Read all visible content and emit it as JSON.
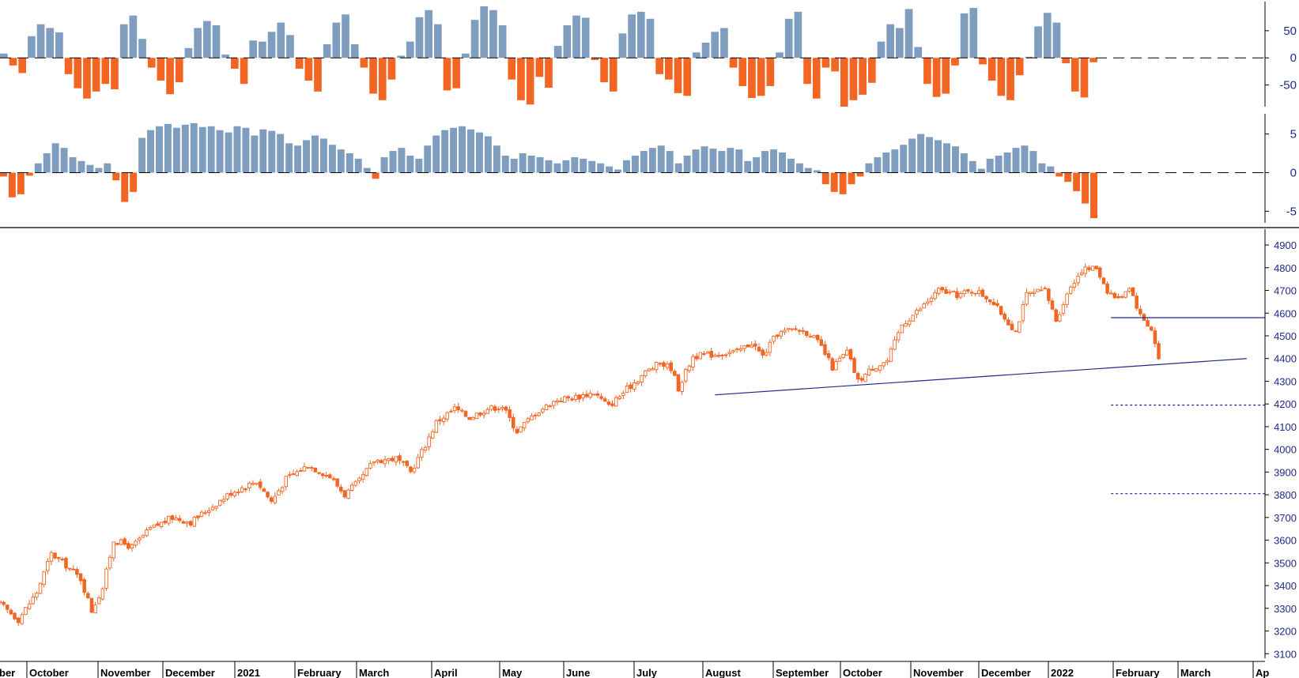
{
  "colors": {
    "up_bar": "#7f9dbf",
    "down_bar": "#f26522",
    "candle": "#f26522",
    "trend_line": "#1f2a8a",
    "support_dotted": "#1f2a8a",
    "axis_text": "#1f2a8a",
    "axis_line": "#000000",
    "month_text": "#000000"
  },
  "chart_data": [
    {
      "type": "bar",
      "panel": "oscillator-top",
      "yticks": [
        50,
        0,
        -50
      ],
      "ylim": [
        -90,
        95
      ],
      "zero_line": "dashed",
      "x_index_range": [
        0,
        345
      ],
      "series": [
        {
          "values": [
            8,
            -14,
            -28,
            40,
            62,
            55,
            47,
            -30,
            -56,
            -75,
            -62,
            -48,
            -58,
            62,
            78,
            35,
            -18,
            -42,
            -67,
            -45,
            18,
            55,
            68,
            60,
            6,
            -20,
            -48,
            32,
            30,
            48,
            65,
            42,
            -20,
            -42,
            -62,
            25,
            65,
            80,
            25,
            -18,
            -66,
            -78,
            -40,
            4,
            30,
            75,
            88,
            62,
            -60,
            -56,
            8,
            70,
            95,
            88,
            60,
            -40,
            -78,
            -86,
            -35,
            -55,
            22,
            60,
            78,
            74,
            -4,
            -45,
            -62,
            45,
            80,
            85,
            72,
            -30,
            -40,
            -65,
            -70,
            10,
            28,
            48,
            55,
            -18,
            -52,
            -74,
            -70,
            -52,
            10,
            72,
            85,
            -48,
            -75,
            -18,
            -25,
            -90,
            -78,
            -68,
            -46,
            30,
            62,
            55,
            90,
            20,
            -48,
            -72,
            -66,
            -14,
            82,
            92,
            -12,
            -42,
            -70,
            -78,
            -32,
            2,
            58,
            83,
            65,
            -10,
            -62,
            -73,
            -8
          ]
        }
      ]
    },
    {
      "type": "bar",
      "panel": "oscillator-bottom",
      "yticks": [
        5,
        0,
        -5
      ],
      "ylim": [
        -6.5,
        7
      ],
      "zero_line": "dashed",
      "x_index_range": [
        0,
        345
      ],
      "series": [
        {
          "values": [
            -0.5,
            -3.2,
            -2.8,
            -0.4,
            1.2,
            2.5,
            3.8,
            3.2,
            2.0,
            1.5,
            1.0,
            0.6,
            1.2,
            -1.0,
            -3.8,
            -2.5,
            4.5,
            5.5,
            6.0,
            6.3,
            5.8,
            6.2,
            6.4,
            5.9,
            6.0,
            5.5,
            5.2,
            6.0,
            5.8,
            4.8,
            5.6,
            5.4,
            5.0,
            3.8,
            3.5,
            4.2,
            4.8,
            4.4,
            3.6,
            3.0,
            2.5,
            1.8,
            0.6,
            -0.8,
            2.0,
            2.8,
            3.2,
            2.2,
            1.8,
            3.5,
            4.8,
            5.5,
            5.8,
            6.0,
            5.6,
            5.2,
            4.7,
            3.5,
            2.2,
            1.8,
            2.5,
            2.2,
            2.0,
            1.6,
            1.2,
            1.6,
            2.0,
            1.8,
            1.5,
            1.2,
            0.8,
            0.4,
            1.6,
            2.2,
            2.8,
            3.2,
            3.5,
            2.8,
            1.2,
            2.2,
            3.0,
            3.4,
            3.1,
            2.8,
            3.2,
            3.0,
            1.5,
            2.0,
            2.8,
            3.0,
            2.6,
            1.8,
            1.2,
            0.6,
            0.3,
            -1.5,
            -2.5,
            -2.8,
            -1.5,
            -0.5,
            1.2,
            2.0,
            2.6,
            3.0,
            3.6,
            4.4,
            5.0,
            4.6,
            4.2,
            3.8,
            3.4,
            2.5,
            1.5,
            0.5,
            1.8,
            2.2,
            2.6,
            3.2,
            3.5,
            2.8,
            1.2,
            0.8,
            -0.5,
            -1.2,
            -2.4,
            -4.0,
            -5.9
          ]
        }
      ]
    },
    {
      "type": "candlestick",
      "panel": "price",
      "yticks": [
        4900,
        4800,
        4700,
        4600,
        4500,
        4400,
        4300,
        4200,
        4100,
        4000,
        3900,
        3800,
        3700,
        3600,
        3500,
        3400,
        3300,
        3200,
        3100
      ],
      "ylim": [
        3080,
        4935
      ],
      "x_index_range": [
        0,
        345
      ],
      "months": [
        {
          "label": "ber"
        },
        {
          "label": "October"
        },
        {
          "label": "November"
        },
        {
          "label": "December"
        },
        {
          "label": "2021"
        },
        {
          "label": "February"
        },
        {
          "label": "March"
        },
        {
          "label": "April"
        },
        {
          "label": "May"
        },
        {
          "label": "June"
        },
        {
          "label": "July"
        },
        {
          "label": "August"
        },
        {
          "label": "September"
        },
        {
          "label": "October"
        },
        {
          "label": "November"
        },
        {
          "label": "December"
        },
        {
          "label": "2022"
        },
        {
          "label": "February"
        },
        {
          "label": "March"
        },
        {
          "label": "Ap"
        }
      ],
      "close_path": [
        {
          "x": 0,
          "y": 3320
        },
        {
          "x": 5,
          "y": 3250
        },
        {
          "x": 10,
          "y": 3370
        },
        {
          "x": 14,
          "y": 3540
        },
        {
          "x": 18,
          "y": 3490
        },
        {
          "x": 22,
          "y": 3430
        },
        {
          "x": 25,
          "y": 3290
        },
        {
          "x": 28,
          "y": 3390
        },
        {
          "x": 31,
          "y": 3600
        },
        {
          "x": 36,
          "y": 3570
        },
        {
          "x": 41,
          "y": 3650
        },
        {
          "x": 47,
          "y": 3700
        },
        {
          "x": 52,
          "y": 3680
        },
        {
          "x": 58,
          "y": 3750
        },
        {
          "x": 63,
          "y": 3810
        },
        {
          "x": 70,
          "y": 3860
        },
        {
          "x": 74,
          "y": 3770
        },
        {
          "x": 78,
          "y": 3870
        },
        {
          "x": 84,
          "y": 3930
        },
        {
          "x": 90,
          "y": 3880
        },
        {
          "x": 94,
          "y": 3800
        },
        {
          "x": 98,
          "y": 3860
        },
        {
          "x": 102,
          "y": 3950
        },
        {
          "x": 108,
          "y": 3960
        },
        {
          "x": 112,
          "y": 3900
        },
        {
          "x": 116,
          "y": 4020
        },
        {
          "x": 119,
          "y": 4120
        },
        {
          "x": 124,
          "y": 4180
        },
        {
          "x": 128,
          "y": 4140
        },
        {
          "x": 133,
          "y": 4180
        },
        {
          "x": 137,
          "y": 4190
        },
        {
          "x": 141,
          "y": 4080
        },
        {
          "x": 146,
          "y": 4160
        },
        {
          "x": 152,
          "y": 4220
        },
        {
          "x": 157,
          "y": 4230
        },
        {
          "x": 162,
          "y": 4250
        },
        {
          "x": 166,
          "y": 4190
        },
        {
          "x": 172,
          "y": 4280
        },
        {
          "x": 176,
          "y": 4340
        },
        {
          "x": 180,
          "y": 4380
        },
        {
          "x": 183,
          "y": 4360
        },
        {
          "x": 185,
          "y": 4270
        },
        {
          "x": 189,
          "y": 4410
        },
        {
          "x": 195,
          "y": 4420
        },
        {
          "x": 201,
          "y": 4430
        },
        {
          "x": 205,
          "y": 4470
        },
        {
          "x": 208,
          "y": 4410
        },
        {
          "x": 212,
          "y": 4510
        },
        {
          "x": 217,
          "y": 4530
        },
        {
          "x": 221,
          "y": 4510
        },
        {
          "x": 224,
          "y": 4450
        },
        {
          "x": 227,
          "y": 4360
        },
        {
          "x": 231,
          "y": 4430
        },
        {
          "x": 234,
          "y": 4300
        },
        {
          "x": 238,
          "y": 4360
        },
        {
          "x": 242,
          "y": 4390
        },
        {
          "x": 246,
          "y": 4550
        },
        {
          "x": 251,
          "y": 4620
        },
        {
          "x": 256,
          "y": 4700
        },
        {
          "x": 261,
          "y": 4680
        },
        {
          "x": 266,
          "y": 4700
        },
        {
          "x": 270,
          "y": 4660
        },
        {
          "x": 274,
          "y": 4580
        },
        {
          "x": 277,
          "y": 4520
        },
        {
          "x": 280,
          "y": 4680
        },
        {
          "x": 285,
          "y": 4700
        },
        {
          "x": 288,
          "y": 4570
        },
        {
          "x": 292,
          "y": 4720
        },
        {
          "x": 295,
          "y": 4790
        },
        {
          "x": 299,
          "y": 4800
        },
        {
          "x": 302,
          "y": 4700
        },
        {
          "x": 305,
          "y": 4660
        },
        {
          "x": 308,
          "y": 4720
        },
        {
          "x": 311,
          "y": 4590
        },
        {
          "x": 314,
          "y": 4530
        },
        {
          "x": 316,
          "y": 4400
        }
      ],
      "reference_lines": [
        {
          "kind": "solid",
          "from_x": 195,
          "to_x": 340,
          "from_y": 4240,
          "to_y": 4400
        },
        {
          "kind": "solid",
          "from_x": 303,
          "to_x": 345,
          "from_y": 4580,
          "to_y": 4580
        },
        {
          "kind": "dotted",
          "from_x": 303,
          "to_x": 345,
          "from_y": 4195,
          "to_y": 4195
        },
        {
          "kind": "dotted",
          "from_x": 303,
          "to_x": 345,
          "from_y": 3805,
          "to_y": 3805
        }
      ]
    }
  ]
}
